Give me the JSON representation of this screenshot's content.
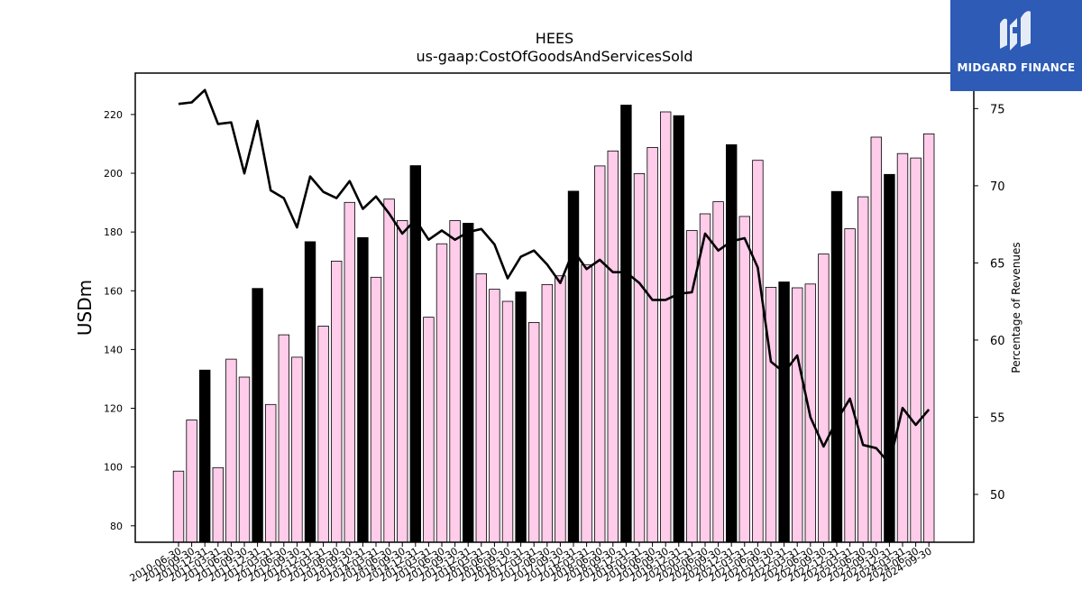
{
  "brand": {
    "name": "MIDGARD FINANCE",
    "logo_icon": "midgard-m-logo-icon",
    "background": "#2d5bb5"
  },
  "chart_data": {
    "type": "bar",
    "title": "HEES",
    "subtitle": "us-gaap:CostOfGoodsAndServicesSold",
    "ylabel": "USDm",
    "y2label": "Percentage of Revenues",
    "ylim": [
      74.4,
      234.1
    ],
    "y2lim": [
      46.9,
      77.3
    ],
    "yticks": [
      80,
      100,
      120,
      140,
      160,
      180,
      200,
      220
    ],
    "y2ticks": [
      50,
      55,
      60,
      65,
      70,
      75
    ],
    "categories": [
      "2010-06-30",
      "2010-09-30",
      "2010-12-31",
      "2011-03-31",
      "2011-06-30",
      "2011-09-30",
      "2011-12-31",
      "2012-03-31",
      "2012-06-30",
      "2012-09-30",
      "2012-12-31",
      "2013-03-31",
      "2013-06-30",
      "2013-09-30",
      "2013-12-31",
      "2014-03-31",
      "2014-06-30",
      "2014-09-30",
      "2014-12-31",
      "2015-03-31",
      "2015-06-30",
      "2015-09-30",
      "2015-12-31",
      "2016-03-31",
      "2016-06-30",
      "2016-09-30",
      "2016-12-31",
      "2017-03-31",
      "2017-06-30",
      "2017-09-30",
      "2017-12-31",
      "2018-03-31",
      "2018-06-30",
      "2018-09-30",
      "2018-12-31",
      "2019-03-31",
      "2019-06-30",
      "2019-09-30",
      "2019-12-31",
      "2020-03-31",
      "2020-06-30",
      "2020-09-30",
      "2020-12-31",
      "2021-03-31",
      "2021-06-30",
      "2021-09-30",
      "2021-12-31",
      "2022-03-31",
      "2022-06-30",
      "2022-09-30",
      "2022-12-31",
      "2023-03-31",
      "2023-06-30",
      "2023-09-30",
      "2023-12-31",
      "2024-03-31",
      "2024-06-30",
      "2024-09-30"
    ],
    "values": [
      98.6,
      116.0,
      133.0,
      99.8,
      136.7,
      130.6,
      160.8,
      121.3,
      145.0,
      137.4,
      176.7,
      148.0,
      170.1,
      190.1,
      178.1,
      164.6,
      191.2,
      183.9,
      202.6,
      151.0,
      176.0,
      183.9,
      183.0,
      165.8,
      160.5,
      156.4,
      159.6,
      149.2,
      162.1,
      165.1,
      193.9,
      168.9,
      202.5,
      207.6,
      223.2,
      199.9,
      208.8,
      220.9,
      219.6,
      180.5,
      186.2,
      190.3,
      209.7,
      185.3,
      204.4,
      161.2,
      163.0,
      161.0,
      162.3,
      172.5,
      193.8,
      181.1,
      192.0,
      212.3,
      199.6,
      206.7,
      205.2,
      213.4
    ],
    "bar_colors": {
      "default": "#ffccea",
      "highlight": "#000000",
      "edge": "#000000"
    },
    "highlight_quarter": "Q4",
    "line": {
      "name": "Percentage of Revenues",
      "color": "#000000",
      "values": [
        75.3,
        75.4,
        76.2,
        74.0,
        74.1,
        70.8,
        74.2,
        69.7,
        69.2,
        67.3,
        70.6,
        69.6,
        69.2,
        70.3,
        68.5,
        69.3,
        68.2,
        66.9,
        67.8,
        66.5,
        67.1,
        66.5,
        67.0,
        67.2,
        66.2,
        64.0,
        65.4,
        65.8,
        64.9,
        63.7,
        65.8,
        64.6,
        65.2,
        64.4,
        64.4,
        63.7,
        62.6,
        62.6,
        63.0,
        63.1,
        66.9,
        65.8,
        66.4,
        66.6,
        64.7,
        58.6,
        57.9,
        59.0,
        55.0,
        53.1,
        54.8,
        56.2,
        53.2,
        53.0,
        52.0,
        55.6,
        54.5,
        55.5
      ]
    }
  }
}
